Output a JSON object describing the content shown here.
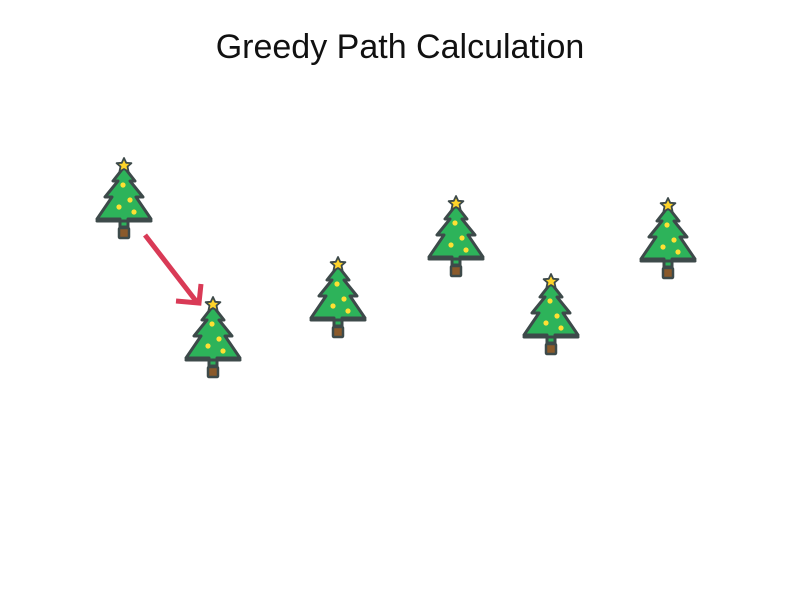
{
  "title": "Greedy Path Calculation",
  "colors": {
    "background": "#ffffff",
    "tree_green": "#2db35a",
    "tree_outline": "#3d4a4a",
    "trunk": "#8a5a2b",
    "star": "#ffd42a",
    "ornament": "#ffe033",
    "path_arrow": "#d93a56"
  },
  "trees": [
    {
      "name": "tree-1",
      "icon": "christmas-tree-icon"
    },
    {
      "name": "tree-2",
      "icon": "christmas-tree-icon"
    },
    {
      "name": "tree-3",
      "icon": "christmas-tree-icon"
    },
    {
      "name": "tree-4",
      "icon": "christmas-tree-icon"
    },
    {
      "name": "tree-5",
      "icon": "christmas-tree-icon"
    },
    {
      "name": "tree-6",
      "icon": "christmas-tree-icon"
    }
  ],
  "path": [
    {
      "from": "tree-1",
      "to": "tree-2"
    }
  ]
}
